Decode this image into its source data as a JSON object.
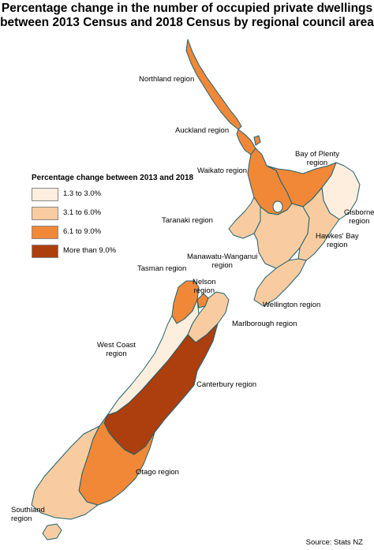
{
  "title": {
    "line1": "Percentage change in the number of occupied private dwellings",
    "line2": "between 2013 Census and 2018 Census by regional council area"
  },
  "legend": {
    "title": "Percentage change between 2013 and 2018",
    "items": [
      {
        "label": "1.3 to 3.0%",
        "color": "#fdeedd"
      },
      {
        "label": "3.1 to 6.0%",
        "color": "#f8cca0"
      },
      {
        "label": "6.1 to 9.0%",
        "color": "#f08838"
      },
      {
        "label": "More than 9.0%",
        "color": "#ad3e0e"
      }
    ]
  },
  "regions": {
    "northland": {
      "name": "Northland region",
      "category": "6.1 to 9.0%"
    },
    "auckland": {
      "name": "Auckland region",
      "category": "6.1 to 9.0%"
    },
    "bay_of_plenty": {
      "name_line1": "Bay of Plenty",
      "name_line2": "region",
      "category": "6.1 to 9.0%"
    },
    "waikato": {
      "name": "Waikato region",
      "category": "6.1 to 9.0%"
    },
    "gisborne": {
      "name_line1": "Gisborne",
      "name_line2": "region",
      "category": "1.3 to 3.0%"
    },
    "taranaki": {
      "name": "Taranaki region",
      "category": "3.1 to 6.0%"
    },
    "hawkes_bay": {
      "name_line1": "Hawkes' Bay",
      "name_line2": "region",
      "category": "3.1 to 6.0%"
    },
    "manawatu": {
      "name_line1": "Manawatu-Wanganui",
      "name_line2": "region",
      "category": "3.1 to 6.0%"
    },
    "tasman": {
      "name": "Tasman region",
      "category": "6.1 to 9.0%"
    },
    "nelson": {
      "name_line1": "Nelson",
      "name_line2": "region",
      "category": "6.1 to 9.0%"
    },
    "wellington": {
      "name": "Wellington region",
      "category": "3.1 to 6.0%"
    },
    "marlborough": {
      "name": "Marlborough region",
      "category": "3.1 to 6.0%"
    },
    "west_coast": {
      "name_line1": "West Coast",
      "name_line2": "region",
      "category": "1.3 to 3.0%"
    },
    "canterbury": {
      "name": "Canterbury region",
      "category": "More than 9.0%"
    },
    "otago": {
      "name": "Otago region",
      "category": "6.1 to 9.0%"
    },
    "southland": {
      "name_line1": "Southland",
      "name_line2": "region",
      "category": "3.1 to 6.0%"
    }
  },
  "colors": {
    "outline": "#1f6070",
    "boundary": "#c9a27d"
  },
  "source": "Source: Stats NZ"
}
